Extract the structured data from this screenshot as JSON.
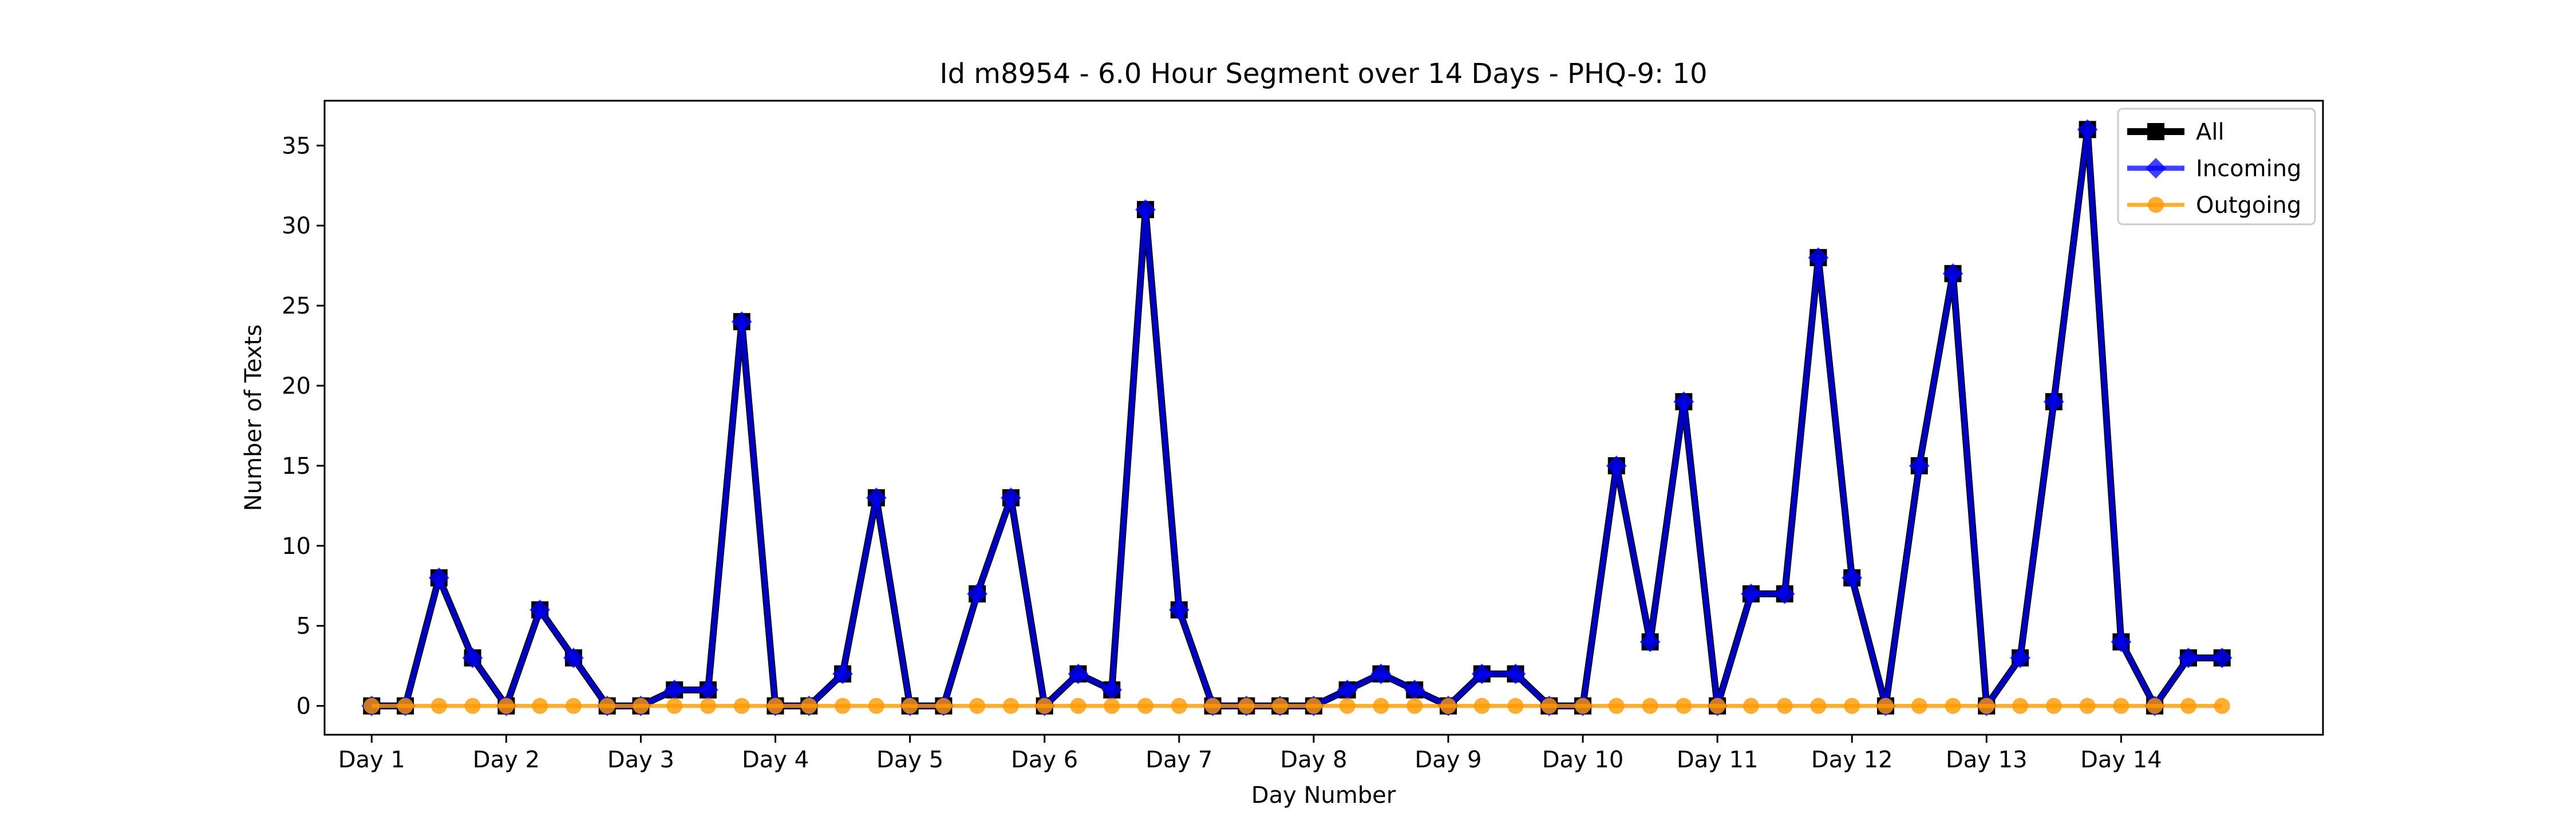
{
  "chart_data": {
    "type": "line",
    "title": "Id m8954 - 6.0 Hour Segment over 14 Days - PHQ-9: 10",
    "xlabel": "Day Number",
    "ylabel": "Number of Texts",
    "xlim": [
      -0.35,
      14.5
    ],
    "ylim": [
      -1.8,
      37.8
    ],
    "y_ticks": [
      0,
      5,
      10,
      15,
      20,
      25,
      30,
      35
    ],
    "x_ticks": [
      {
        "value": 0,
        "label": "Day 1"
      },
      {
        "value": 1,
        "label": "Day 2"
      },
      {
        "value": 2,
        "label": "Day 3"
      },
      {
        "value": 3,
        "label": "Day 4"
      },
      {
        "value": 4,
        "label": "Day 5"
      },
      {
        "value": 5,
        "label": "Day 6"
      },
      {
        "value": 6,
        "label": "Day 7"
      },
      {
        "value": 7,
        "label": "Day 8"
      },
      {
        "value": 8,
        "label": "Day 9"
      },
      {
        "value": 9,
        "label": "Day 10"
      },
      {
        "value": 10,
        "label": "Day 11"
      },
      {
        "value": 11,
        "label": "Day 12"
      },
      {
        "value": 12,
        "label": "Day 13"
      },
      {
        "value": 13,
        "label": "Day 14"
      }
    ],
    "x": [
      0,
      0.25,
      0.5,
      0.75,
      1,
      1.25,
      1.5,
      1.75,
      2,
      2.25,
      2.5,
      2.75,
      3,
      3.25,
      3.5,
      3.75,
      4,
      4.25,
      4.5,
      4.75,
      5,
      5.25,
      5.5,
      5.75,
      6,
      6.25,
      6.5,
      6.75,
      7,
      7.25,
      7.5,
      7.75,
      8,
      8.25,
      8.5,
      8.75,
      9,
      9.25,
      9.5,
      9.75,
      10,
      10.25,
      10.5,
      10.75,
      11,
      11.25,
      11.5,
      11.75,
      12,
      12.25,
      12.5,
      12.75,
      13,
      13.25,
      13.5,
      13.75
    ],
    "series": [
      {
        "name": "All",
        "color": "#000000",
        "marker": "square",
        "values": [
          0,
          0,
          8,
          3,
          0,
          6,
          3,
          0,
          0,
          1,
          1,
          24,
          0,
          0,
          2,
          13,
          0,
          0,
          7,
          13,
          0,
          2,
          1,
          31,
          6,
          0,
          0,
          0,
          0,
          1,
          2,
          1,
          0,
          2,
          2,
          0,
          0,
          15,
          4,
          19,
          0,
          7,
          7,
          28,
          8,
          0,
          15,
          27,
          0,
          3,
          19,
          36,
          4,
          0,
          3,
          3
        ]
      },
      {
        "name": "Incoming",
        "color": "#0000ff",
        "marker": "diamond",
        "values": [
          0,
          0,
          8,
          3,
          0,
          6,
          3,
          0,
          0,
          1,
          1,
          24,
          0,
          0,
          2,
          13,
          0,
          0,
          7,
          13,
          0,
          2,
          1,
          31,
          6,
          0,
          0,
          0,
          0,
          1,
          2,
          1,
          0,
          2,
          2,
          0,
          0,
          15,
          4,
          19,
          0,
          7,
          7,
          28,
          8,
          0,
          15,
          27,
          0,
          3,
          19,
          36,
          4,
          0,
          3,
          3
        ]
      },
      {
        "name": "Outgoing",
        "color": "#ff9900",
        "marker": "circle",
        "values": [
          0,
          0,
          0,
          0,
          0,
          0,
          0,
          0,
          0,
          0,
          0,
          0,
          0,
          0,
          0,
          0,
          0,
          0,
          0,
          0,
          0,
          0,
          0,
          0,
          0,
          0,
          0,
          0,
          0,
          0,
          0,
          0,
          0,
          0,
          0,
          0,
          0,
          0,
          0,
          0,
          0,
          0,
          0,
          0,
          0,
          0,
          0,
          0,
          0,
          0,
          0,
          0,
          0,
          0,
          0,
          0
        ]
      }
    ],
    "legend_position": "top-right",
    "grid": false
  }
}
